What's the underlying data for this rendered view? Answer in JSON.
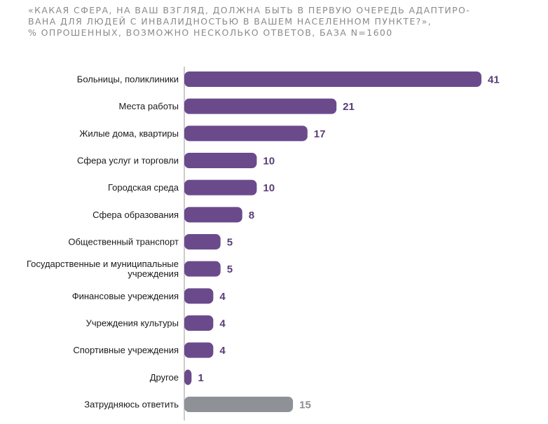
{
  "title_lines": [
    "«КАКАЯ СФЕРА, НА ВАШ ВЗГЛЯД, ДОЛЖНА БЫТЬ В ПЕРВУЮ ОЧЕРЕДЬ АДАПТИРО-",
    "ВАНА ДЛЯ ЛЮДЕЙ С ИНВАЛИДНОСТЬЮ В ВАШЕМ НАСЕЛЕННОМ ПУНКТЕ?»,",
    "% ОПРОШЕННЫХ, ВОЗМОЖНО НЕСКОЛЬКО ОТВЕТОВ, БАЗА N=1600"
  ],
  "colors": {
    "primary_bar": "#6b4a8c",
    "secondary_bar": "#8e9196",
    "value_label": "#5a3d78",
    "category_label": "#1a1a1a",
    "axis": "#9a9a9a",
    "title": "#8a8a8a"
  },
  "chart_data": {
    "type": "bar",
    "orientation": "horizontal",
    "categories": [
      "Больницы, поликлиники",
      "Места работы",
      "Жилые дома, квартиры",
      "Сфера услуг и торговли",
      "Городская среда",
      "Сфера образования",
      "Общественный транспорт",
      "Государственные и муниципальные\nучреждения",
      "Финансовые учреждения",
      "Учреждения культуры",
      "Спортивные учреждения",
      "Другое",
      "Затрудняюсь ответить"
    ],
    "values": [
      41,
      21,
      17,
      10,
      10,
      8,
      5,
      5,
      4,
      4,
      4,
      1,
      15
    ],
    "highlight_gray_indices": [
      12
    ],
    "xlim": [
      0,
      41
    ],
    "grid": false,
    "legend": "none"
  }
}
